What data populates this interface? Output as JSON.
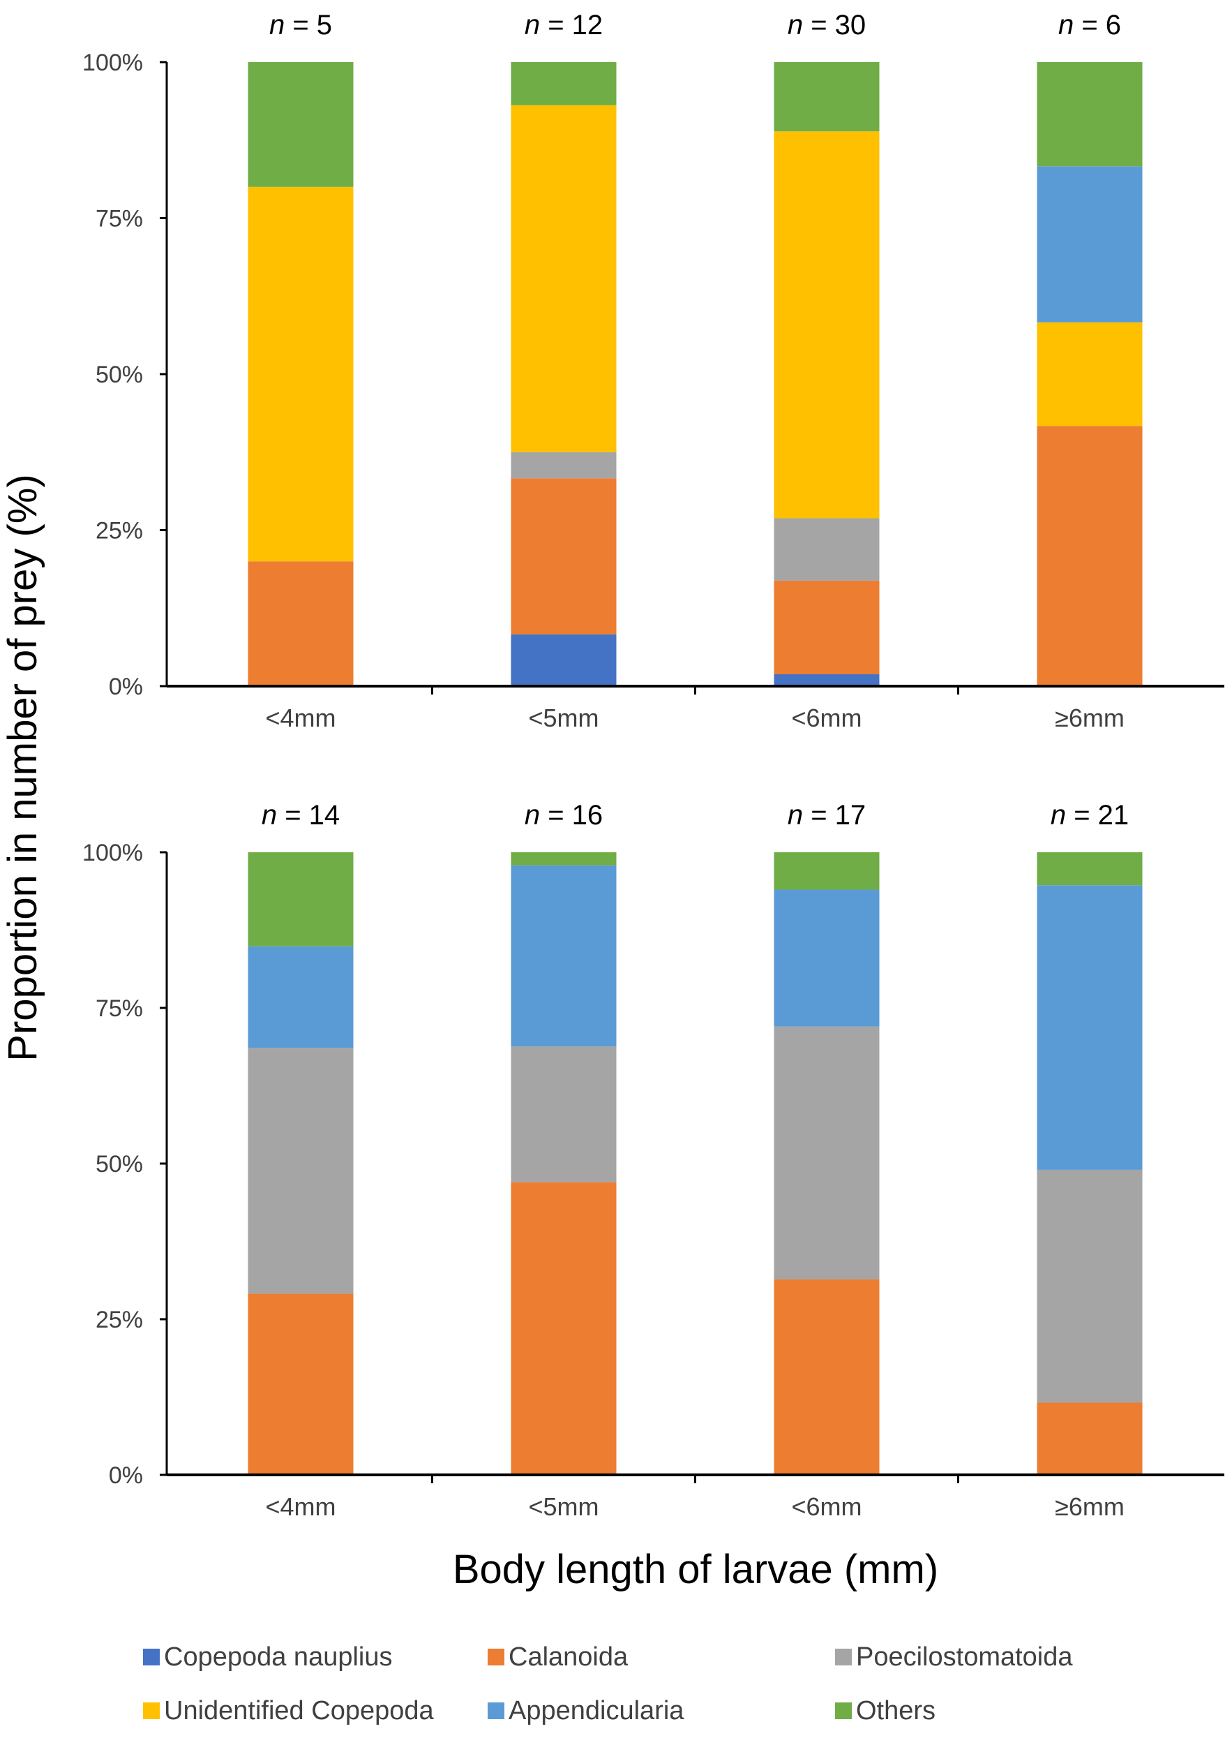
{
  "chart_data": [
    {
      "type": "bar",
      "stacked": true,
      "panel": "top",
      "categories": [
        "<4mm",
        "<5mm",
        "<6mm",
        "≥6mm"
      ],
      "n_labels": [
        "5",
        "12",
        "30",
        "6"
      ],
      "ylim": [
        0,
        100
      ],
      "yticks": [
        "0%",
        "25%",
        "50%",
        "75%",
        "100%"
      ],
      "series": [
        {
          "name": "Copepoda nauplius",
          "values": [
            0,
            8.3,
            1.9,
            0
          ]
        },
        {
          "name": "Calanoida",
          "values": [
            20,
            25.0,
            15.0,
            41.7
          ]
        },
        {
          "name": "Poecilostomatoida",
          "values": [
            0,
            4.2,
            10.0,
            0
          ]
        },
        {
          "name": "Unidentified Copepoda",
          "values": [
            60,
            55.6,
            62.0,
            16.6
          ]
        },
        {
          "name": "Appendicularia",
          "values": [
            0,
            0,
            0,
            25.0
          ]
        },
        {
          "name": "Others",
          "values": [
            20,
            6.9,
            11.1,
            16.7
          ]
        }
      ]
    },
    {
      "type": "bar",
      "stacked": true,
      "panel": "bottom",
      "categories": [
        "<4mm",
        "<5mm",
        "<6mm",
        "≥6mm"
      ],
      "n_labels": [
        "14",
        "16",
        "17",
        "21"
      ],
      "ylim": [
        0,
        100
      ],
      "yticks": [
        "0%",
        "25%",
        "50%",
        "75%",
        "100%"
      ],
      "series": [
        {
          "name": "Copepoda nauplius",
          "values": [
            0,
            0,
            0,
            0
          ]
        },
        {
          "name": "Calanoida",
          "values": [
            29.1,
            47.0,
            31.4,
            11.6
          ]
        },
        {
          "name": "Poecilostomatoida",
          "values": [
            39.5,
            21.8,
            40.6,
            37.4
          ]
        },
        {
          "name": "Unidentified Copepoda",
          "values": [
            0,
            0,
            0,
            0
          ]
        },
        {
          "name": "Appendicularia",
          "values": [
            16.3,
            29.1,
            22.0,
            45.7
          ]
        },
        {
          "name": "Others",
          "values": [
            15.1,
            2.1,
            6.0,
            5.3
          ]
        }
      ]
    }
  ],
  "n_prefix": "n",
  "n_eq": " = ",
  "ylabel": "Proportion in number of prey (%)",
  "xlabel": "Body length of larvae (mm)",
  "legend": [
    "Copepoda nauplius",
    "Calanoida",
    "Poecilostomatoida",
    "Unidentified Copepoda",
    "Appendicularia",
    "Others"
  ],
  "colors": [
    "#4472C4",
    "#ED7D31",
    "#A5A5A5",
    "#FFC000",
    "#5B9BD5",
    "#70AD47"
  ]
}
